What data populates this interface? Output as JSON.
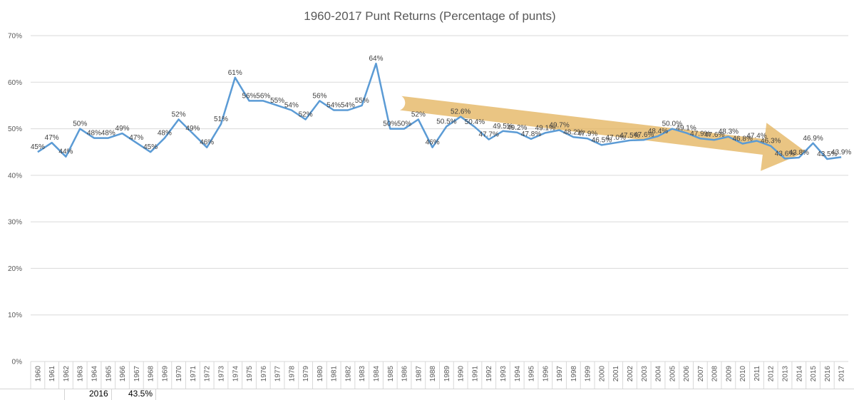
{
  "chart_data": {
    "type": "line",
    "title": "1960-2017 Punt Returns (Percentage of punts)",
    "xlabel": "",
    "ylabel": "",
    "ylim": [
      0,
      70
    ],
    "yticks": [
      "0%",
      "10%",
      "20%",
      "30%",
      "40%",
      "50%",
      "60%",
      "70%"
    ],
    "grid": true,
    "legend": "none",
    "line_color": "#5b9bd5",
    "arrow_color": "#e3b25a",
    "categories": [
      "1960",
      "1961",
      "1962",
      "1963",
      "1964",
      "1965",
      "1966",
      "1967",
      "1968",
      "1969",
      "1970",
      "1971",
      "1972",
      "1973",
      "1974",
      "1975",
      "1976",
      "1977",
      "1978",
      "1979",
      "1980",
      "1981",
      "1982",
      "1983",
      "1984",
      "1985",
      "1986",
      "1987",
      "1988",
      "1989",
      "1990",
      "1991",
      "1992",
      "1993",
      "1994",
      "1995",
      "1996",
      "1997",
      "1998",
      "1999",
      "2000",
      "2001",
      "2002",
      "2003",
      "2004",
      "2005",
      "2006",
      "2007",
      "2008",
      "2009",
      "2010",
      "2011",
      "2012",
      "2013",
      "2014",
      "2015",
      "2016",
      "2017"
    ],
    "values": [
      45,
      47,
      44,
      50,
      48,
      48,
      49,
      47,
      45,
      48,
      52,
      49,
      46,
      51,
      61,
      56,
      56,
      55,
      54,
      52,
      56,
      54,
      54,
      55,
      64,
      50,
      50,
      52,
      46,
      50.5,
      52.6,
      50.4,
      47.7,
      49.5,
      49.2,
      47.8,
      49.1,
      49.7,
      48.2,
      47.9,
      46.5,
      47.0,
      47.5,
      47.6,
      48.4,
      50.0,
      49.1,
      47.9,
      47.6,
      48.3,
      46.8,
      47.4,
      46.3,
      43.6,
      43.8,
      46.9,
      43.5,
      43.9
    ],
    "data_labels": [
      "45%",
      "47%",
      "44%",
      "50%",
      "48%",
      "48%",
      "49%",
      "47%",
      "45%",
      "48%",
      "52%",
      "49%",
      "46%",
      "51%",
      "61%",
      "56%",
      "56%",
      "55%",
      "54%",
      "52%",
      "56%",
      "54%",
      "54%",
      "55%",
      "64%",
      "50%",
      "50%",
      "52%",
      "46%",
      "50.5%",
      "52.6%",
      "50.4%",
      "47.7%",
      "49.5%",
      "49.2%",
      "47.8%",
      "49.1%",
      "49.7%",
      "48.2%",
      "47.9%",
      "46.5%",
      "47.0%",
      "47.5%",
      "47.6%",
      "48.4%",
      "50.0%",
      "49.1%",
      "47.9%",
      "47.6%",
      "48.3%",
      "46.8%",
      "47.4%",
      "46.3%",
      "43.6%",
      "43.8%",
      "46.9%",
      "43.5%",
      "43.9%"
    ],
    "annotation": "downward trend arrow from 1986 to 2014"
  },
  "sheet_cells": {
    "year": "2016",
    "value": "43.5%"
  }
}
